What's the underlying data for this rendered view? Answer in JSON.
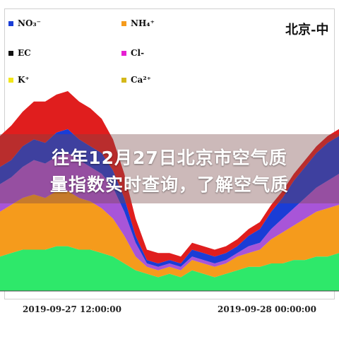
{
  "chart_data": {
    "type": "area",
    "stacked": true,
    "title": "北京-中",
    "x_tick_labels": [
      "2019-09-27 12:00:00",
      "2019-09-28 00:00:00"
    ],
    "x": [
      0,
      1,
      2,
      3,
      4,
      5,
      6,
      7,
      8,
      9,
      10,
      11,
      12,
      13,
      14,
      15,
      16,
      17,
      18,
      19,
      20,
      21,
      22,
      23,
      24,
      25,
      26,
      27,
      28,
      29,
      30
    ],
    "legend": [
      {
        "label": "NO₃⁻",
        "color": "#1a3dd6"
      },
      {
        "label": "NH₄⁺",
        "color": "#f59b1c"
      },
      {
        "label": "EC",
        "color": "#111111"
      },
      {
        "label": "Cl-",
        "color": "#e61fd2"
      },
      {
        "label": "K⁺",
        "color": "#f2e61a"
      },
      {
        "label": "Ca²⁺",
        "color": "#d4b81a"
      }
    ],
    "series": [
      {
        "name": "",
        "color": "#2ee86a",
        "values": [
          10,
          11,
          12,
          12,
          12,
          13,
          13,
          12,
          12,
          11,
          10,
          8,
          6,
          5,
          4,
          5,
          4,
          6,
          5,
          4,
          5,
          6,
          7,
          7,
          8,
          8,
          9,
          9,
          10,
          10,
          11
        ]
      },
      {
        "name": "NH₄⁺",
        "color": "#f59b1c",
        "values": [
          13,
          14,
          15,
          16,
          15,
          16,
          16,
          15,
          14,
          13,
          11,
          8,
          4,
          2,
          2,
          2,
          2,
          3,
          3,
          3,
          3,
          4,
          4,
          5,
          7,
          9,
          10,
          12,
          13,
          14,
          14
        ]
      },
      {
        "name": "",
        "color": "#a855d8",
        "values": [
          8,
          8,
          9,
          10,
          10,
          10,
          11,
          11,
          10,
          10,
          9,
          7,
          4,
          1,
          1,
          1,
          1,
          1,
          1,
          1,
          1,
          1,
          2,
          2,
          3,
          4,
          5,
          6,
          7,
          8,
          9
        ]
      },
      {
        "name": "NO₃⁻",
        "color": "#1a3dd6",
        "values": [
          5,
          5,
          6,
          6,
          6,
          7,
          7,
          6,
          6,
          6,
          5,
          4,
          2,
          1,
          1,
          1,
          1,
          2,
          2,
          2,
          2,
          2,
          3,
          4,
          5,
          6,
          8,
          9,
          10,
          11,
          11
        ]
      },
      {
        "name": "",
        "color": "#e01e1e",
        "values": [
          9,
          10,
          10,
          11,
          12,
          11,
          11,
          11,
          11,
          10,
          9,
          7,
          5,
          3,
          3,
          2,
          2,
          2,
          2,
          2,
          2,
          2,
          2,
          2,
          2,
          2,
          2,
          2,
          2,
          2,
          2
        ]
      }
    ],
    "ylim": [
      0,
      66
    ],
    "grid": false,
    "legend_position": "top-left"
  },
  "overlay": {
    "line1": "往年12月27日北京市空气质",
    "line2": "量指数实时查询，了解空气质"
  }
}
